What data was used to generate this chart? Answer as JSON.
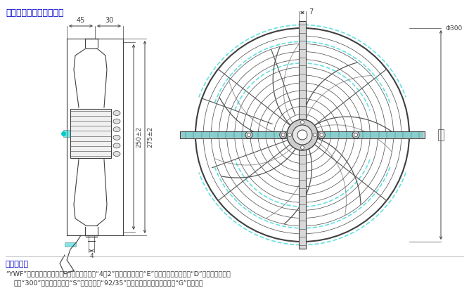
{
  "title": "外形尺寸测量方式参考图",
  "title_color": "#0000CD",
  "bg_color": "#FFFFFF",
  "dc": "#404040",
  "cyan_color": "#00CCCC",
  "note_title": "参数说明：",
  "note_text": "“YWF”表示交流感应异步外转子风扇电动机，“4、2”表示电机极数，“E”表示单相电容运转、“D”表示三相异步运",
  "note_text2": "转，“300”表示风叶直径，“S”表示吸风，“92/35”表示转子直径和铁芯叠厚，“G”表示网罩"
}
